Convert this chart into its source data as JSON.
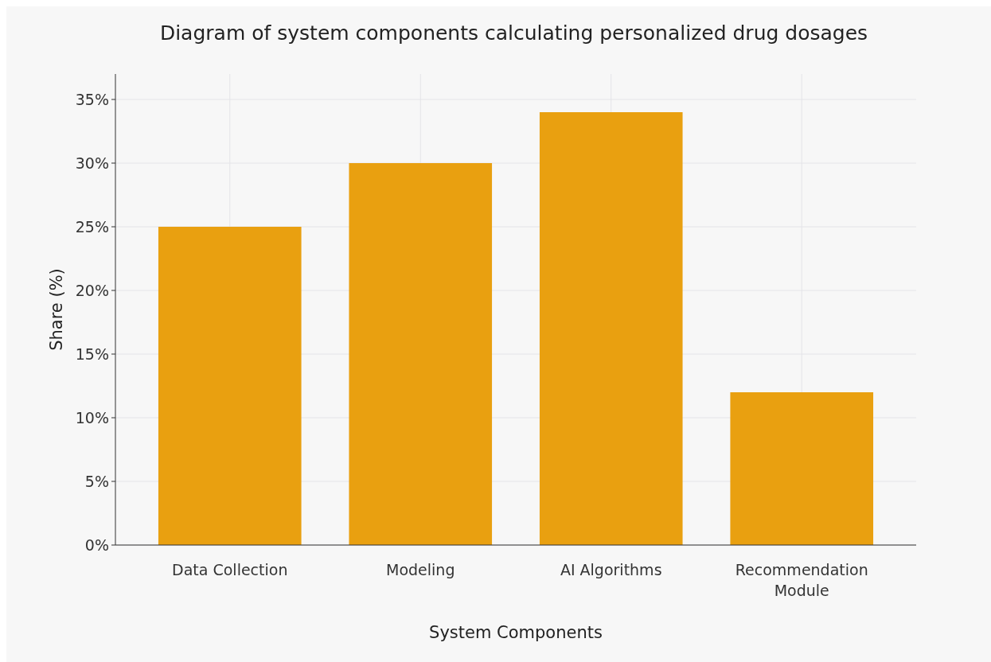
{
  "chart_data": {
    "type": "bar",
    "title": "Diagram of system components calculating personalized drug dosages",
    "xlabel": "System Components",
    "ylabel": "Share (%)",
    "categories": [
      "Data Collection",
      "Modeling",
      "AI Algorithms",
      "Recommendation Module"
    ],
    "values": [
      25,
      30,
      34,
      12
    ],
    "color": "#e9a010",
    "ylim": [
      0,
      37
    ],
    "yticks": [
      {
        "value": 0,
        "label": "0%"
      },
      {
        "value": 5,
        "label": "5%"
      },
      {
        "value": 10,
        "label": "10%"
      },
      {
        "value": 15,
        "label": "15%"
      },
      {
        "value": 20,
        "label": "20%"
      },
      {
        "value": 25,
        "label": "25%"
      },
      {
        "value": 30,
        "label": "30%"
      },
      {
        "value": 35,
        "label": "35%"
      }
    ],
    "grid": true
  }
}
